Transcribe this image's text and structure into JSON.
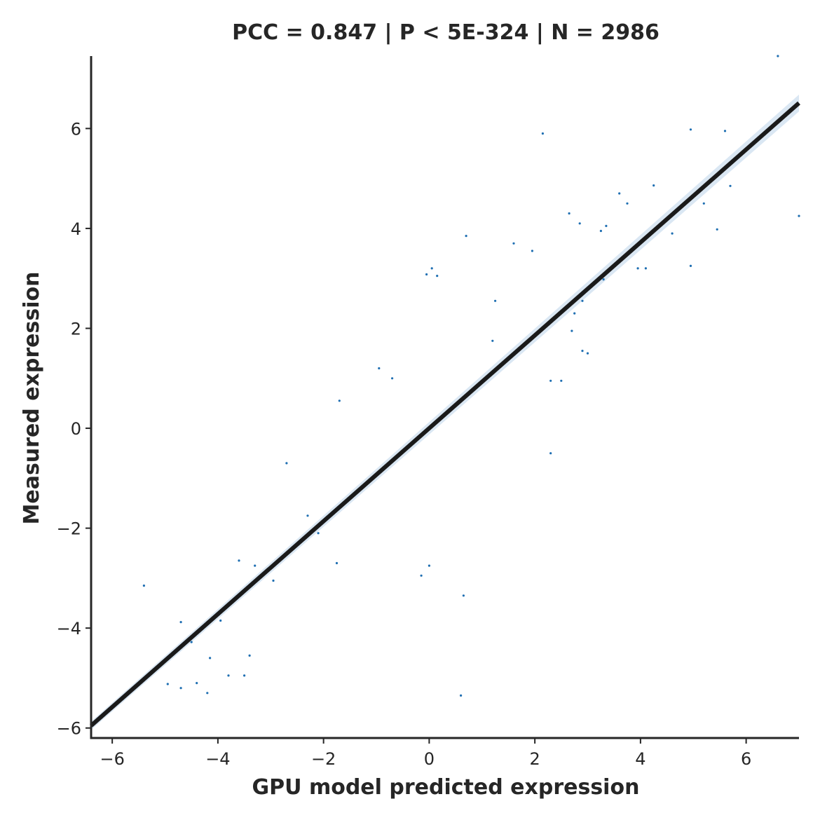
{
  "chart_data": {
    "type": "scatter",
    "title": "PCC =  0.847 | P <  5E-324 | N = 2986",
    "xlabel": "GPU model predicted expression",
    "ylabel": "Measured expression",
    "xlim": [
      -6.4,
      7.0
    ],
    "ylim": [
      -6.2,
      7.45
    ],
    "xticks": [
      -6,
      -4,
      -2,
      0,
      2,
      4,
      6
    ],
    "yticks": [
      -6,
      -4,
      -2,
      0,
      2,
      4,
      6
    ],
    "xtick_labels": [
      "−6",
      "−4",
      "−2",
      "0",
      "2",
      "4",
      "6"
    ],
    "ytick_labels": [
      "−6",
      "−4",
      "−2",
      "0",
      "2",
      "4",
      "6"
    ],
    "grid": false,
    "point_color": "#1f6fb2",
    "fit_color": "#1a1a1a",
    "ci_color": "#bcd4ea",
    "regression": {
      "slope": 0.93,
      "intercept": 0.0,
      "x_range": [
        -6.4,
        7.0
      ]
    },
    "points_x": [
      6.6,
      2.15,
      4.95,
      5.6,
      7.0,
      4.25,
      3.6,
      3.75,
      5.2,
      5.45,
      5.7,
      4.95,
      4.1,
      3.95,
      2.65,
      2.85,
      3.35,
      3.25,
      0.7,
      1.6,
      1.95,
      0.05,
      -0.05,
      0.15,
      4.6,
      3.3,
      2.9,
      2.75,
      -5.4,
      -4.7,
      -4.5,
      -4.15,
      -4.2,
      -3.8,
      -3.5,
      -3.4,
      -2.95,
      -3.3,
      -3.6,
      -4.95,
      -4.7,
      -4.4,
      -3.95,
      0.6,
      0.65,
      -0.15,
      0.0,
      -0.95,
      -0.7,
      -2.7,
      -1.7,
      -1.75,
      -2.1,
      -2.3,
      1.0,
      1.2,
      1.25,
      2.7,
      2.5,
      2.3,
      2.3,
      2.9,
      3.0
    ],
    "points_y": [
      7.45,
      5.9,
      5.98,
      5.95,
      4.25,
      4.86,
      4.7,
      4.5,
      4.5,
      3.98,
      4.85,
      3.25,
      3.2,
      3.2,
      4.3,
      4.1,
      4.05,
      3.95,
      3.85,
      3.7,
      3.55,
      3.2,
      3.08,
      3.05,
      3.9,
      2.98,
      2.55,
      2.3,
      -3.15,
      -3.88,
      -4.28,
      -4.6,
      -5.3,
      -4.95,
      -4.95,
      -4.55,
      -3.05,
      -2.75,
      -2.65,
      -5.12,
      -5.2,
      -5.1,
      -3.85,
      -5.35,
      -3.35,
      -2.95,
      -2.75,
      1.2,
      1.0,
      -0.7,
      0.55,
      -2.7,
      -2.1,
      -1.75,
      0.95,
      1.75,
      2.55,
      1.95,
      0.95,
      -0.5,
      0.95,
      1.55,
      1.5
    ]
  }
}
